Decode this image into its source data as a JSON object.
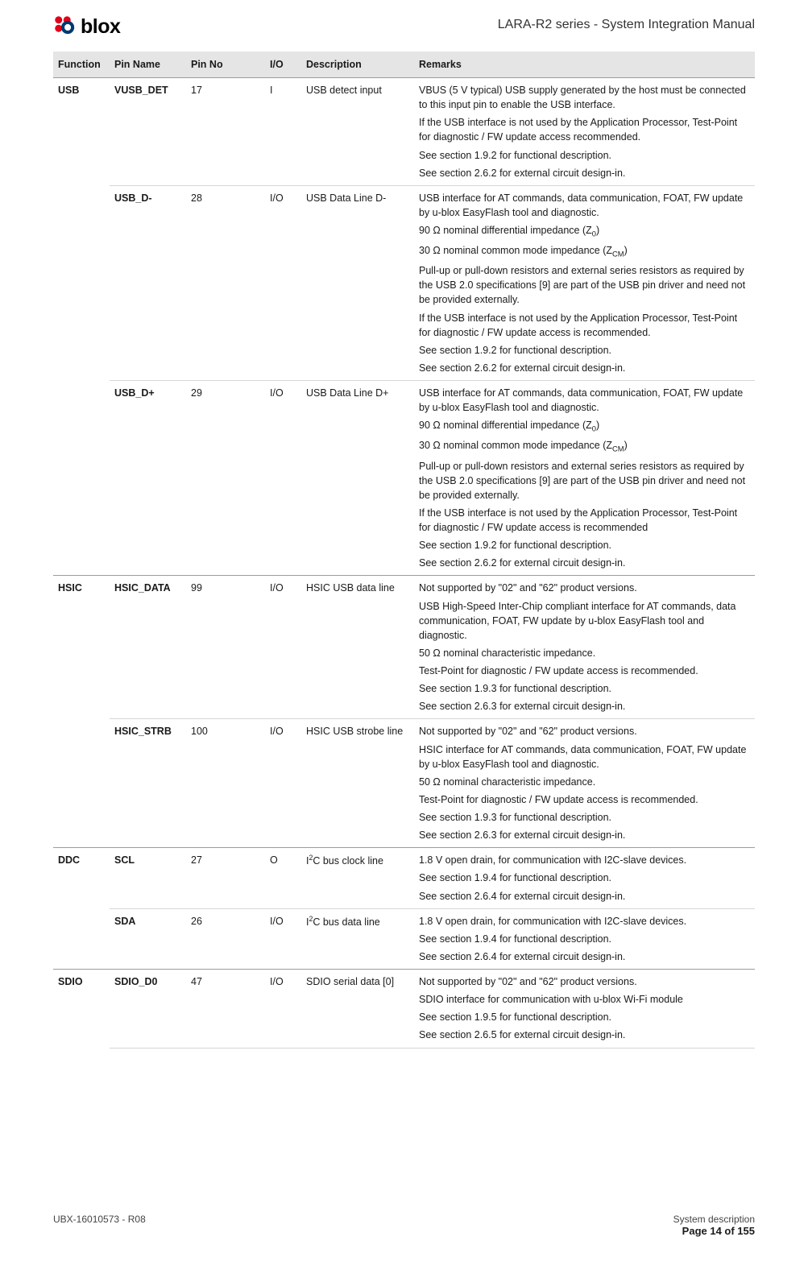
{
  "header": {
    "logo_text": "blox",
    "doc_title": "LARA-R2 series - System Integration Manual"
  },
  "table": {
    "columns": [
      "Function",
      "Pin Name",
      "Pin No",
      "I/O",
      "Description",
      "Remarks"
    ],
    "rows": [
      {
        "function": "USB",
        "pin_name": "VUSB_DET",
        "pin_no": "17",
        "io": "I",
        "description": "USB detect input",
        "remarks": [
          "VBUS (5 V typical) USB supply generated by the host must be connected to this input pin to enable the USB interface.",
          "If the USB interface is not used by the Application Processor, Test-Point for diagnostic / FW update access recommended.",
          "See section 1.9.2 for functional description.",
          "See section 2.6.2 for external circuit design-in."
        ],
        "first_of_function": true
      },
      {
        "function": "",
        "pin_name": "USB_D-",
        "pin_no": "28",
        "io": "I/O",
        "description": "USB Data Line D-",
        "remarks": [
          "USB interface for AT commands, data communication, FOAT, FW update by u-blox EasyFlash tool and diagnostic.",
          "90 Ω nominal differential impedance (Z₀)",
          "30 Ω nominal common mode impedance (Z_CM)",
          "Pull-up or pull-down resistors and external series resistors as required by the USB 2.0 specifications [9] are part of the USB pin driver and need not be provided externally.",
          "If the USB interface is not used by the Application Processor, Test-Point for diagnostic / FW update access is recommended.",
          "See section 1.9.2 for functional description.",
          "See section 2.6.2 for external circuit design-in."
        ],
        "first_of_function": false
      },
      {
        "function": "",
        "pin_name": "USB_D+",
        "pin_no": "29",
        "io": "I/O",
        "description": "USB Data Line D+",
        "remarks": [
          "USB interface for AT commands, data communication, FOAT, FW update by u-blox EasyFlash tool and diagnostic.",
          "90 Ω nominal differential impedance (Z₀)",
          "30 Ω nominal common mode impedance (Z_CM)",
          "Pull-up or pull-down resistors and external series resistors as required by the USB 2.0 specifications [9] are part of the USB pin driver and need not be provided externally.",
          "If the USB interface is not used by the Application Processor, Test-Point for diagnostic / FW update access is recommended",
          "See section 1.9.2 for functional description.",
          "See section 2.6.2 for external circuit design-in."
        ],
        "first_of_function": false
      },
      {
        "function": "HSIC",
        "pin_name": "HSIC_DATA",
        "pin_no": "99",
        "io": "I/O",
        "description": "HSIC USB data line",
        "remarks": [
          "Not supported by \"02\" and \"62\" product versions.",
          "USB High-Speed Inter-Chip compliant interface for AT commands, data communication, FOAT, FW update by u-blox EasyFlash tool and diagnostic.",
          "50 Ω nominal characteristic impedance.",
          "Test-Point for diagnostic / FW update access is recommended.",
          "See section 1.9.3 for functional description.",
          "See section 2.6.3 for external circuit design-in."
        ],
        "first_of_function": true
      },
      {
        "function": "",
        "pin_name": "HSIC_STRB",
        "pin_no": "100",
        "io": "I/O",
        "description": "HSIC USB strobe line",
        "remarks": [
          "Not supported by \"02\" and \"62\" product versions.",
          "HSIC interface for AT commands, data communication, FOAT, FW update by u-blox EasyFlash tool and diagnostic.",
          "50 Ω nominal characteristic impedance.",
          "Test-Point for diagnostic / FW update access is recommended.",
          "See section 1.9.3 for functional description.",
          "See section 2.6.3 for external circuit design-in."
        ],
        "first_of_function": false
      },
      {
        "function": "DDC",
        "pin_name": "SCL",
        "pin_no": "27",
        "io": "O",
        "description": "I²C bus clock line",
        "remarks": [
          "1.8 V open drain, for communication with I2C-slave devices.",
          "See section 1.9.4 for functional description.",
          "See section 2.6.4 for external circuit design-in."
        ],
        "first_of_function": true
      },
      {
        "function": "",
        "pin_name": "SDA",
        "pin_no": "26",
        "io": "I/O",
        "description": "I²C bus data line",
        "remarks": [
          "1.8 V open drain, for communication with I2C-slave devices.",
          "See section 1.9.4 for functional description.",
          "See section 2.6.4 for external circuit design-in."
        ],
        "first_of_function": false
      },
      {
        "function": "SDIO",
        "pin_name": "SDIO_D0",
        "pin_no": "47",
        "io": "I/O",
        "description": "SDIO serial data [0]",
        "remarks": [
          "Not supported by \"02\" and \"62\" product versions.",
          "SDIO interface for communication with u-blox Wi-Fi module",
          "See section 1.9.5 for functional description.",
          "See section 2.6.5 for external circuit design-in."
        ],
        "first_of_function": true,
        "trailing_divider": true
      }
    ]
  },
  "footer": {
    "doc_ref": "UBX-16010573 - R08",
    "section": "System description",
    "page": "Page 14 of 155"
  },
  "colors": {
    "header_bg": "#e5e5e5",
    "section_border": "#9c9c9c",
    "sub_border": "#d6d6d6",
    "text": "#1a1a1a",
    "logo_red": "#e2001a",
    "logo_blue": "#003a70"
  }
}
